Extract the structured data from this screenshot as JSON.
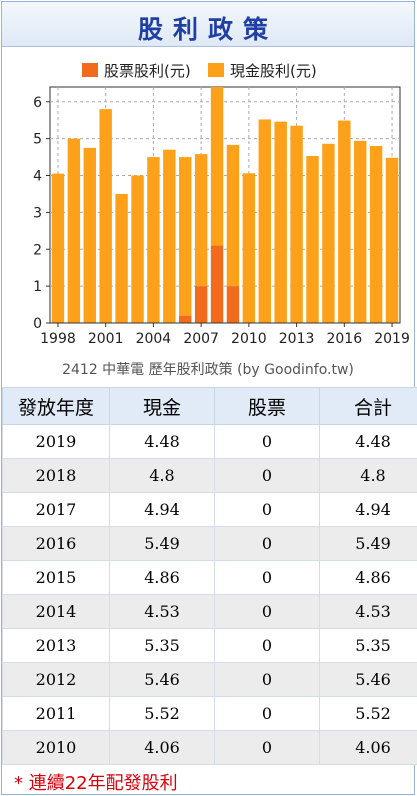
{
  "page": {
    "title": "股利政策"
  },
  "chart_data": {
    "type": "bar",
    "title": "2412 中華電 歷年股利政策 (by Goodinfo.tw)",
    "legend": {
      "placement": "top-center",
      "entries": [
        {
          "name": "股票股利(元)",
          "color": "#f26b1d"
        },
        {
          "name": "現金股利(元)",
          "color": "#fda01a"
        }
      ]
    },
    "ylim": [
      0,
      6.4
    ],
    "yticks": [
      "0",
      "1",
      "2",
      "3",
      "4",
      "5",
      "6"
    ],
    "xtick_labels": [
      "1998",
      "2001",
      "2004",
      "2007",
      "2010",
      "2013",
      "2016",
      "2019"
    ],
    "grid": true,
    "categories": [
      1998,
      1999,
      2000,
      2001,
      2002,
      2003,
      2004,
      2005,
      2006,
      2007,
      2008,
      2009,
      2010,
      2011,
      2012,
      2013,
      2014,
      2015,
      2016,
      2017,
      2018,
      2019
    ],
    "series": [
      {
        "name": "股票股利(元)",
        "color": "#f26b1d",
        "values": [
          0,
          0,
          0,
          0,
          0,
          0,
          0,
          0,
          0.2,
          1.0,
          2.1,
          1.0,
          0,
          0,
          0,
          0,
          0,
          0,
          0,
          0,
          0,
          0
        ]
      },
      {
        "name": "現金股利(元)",
        "color": "#fda01a",
        "values": [
          4.05,
          5.0,
          4.75,
          5.8,
          3.5,
          4.0,
          4.5,
          4.7,
          4.3,
          3.58,
          4.3,
          3.83,
          4.06,
          5.52,
          5.46,
          5.35,
          4.53,
          4.86,
          5.49,
          4.94,
          4.8,
          4.48
        ]
      }
    ]
  },
  "table": {
    "headers": [
      "發放年度",
      "現金",
      "股票",
      "合計"
    ],
    "rows": [
      [
        "2019",
        "4.48",
        "0",
        "4.48"
      ],
      [
        "2018",
        "4.8",
        "0",
        "4.8"
      ],
      [
        "2017",
        "4.94",
        "0",
        "4.94"
      ],
      [
        "2016",
        "5.49",
        "0",
        "5.49"
      ],
      [
        "2015",
        "4.86",
        "0",
        "4.86"
      ],
      [
        "2014",
        "4.53",
        "0",
        "4.53"
      ],
      [
        "2013",
        "5.35",
        "0",
        "5.35"
      ],
      [
        "2012",
        "5.46",
        "0",
        "5.46"
      ],
      [
        "2011",
        "5.52",
        "0",
        "5.52"
      ],
      [
        "2010",
        "4.06",
        "0",
        "4.06"
      ]
    ]
  },
  "footnote": "* 連續22年配發股利"
}
